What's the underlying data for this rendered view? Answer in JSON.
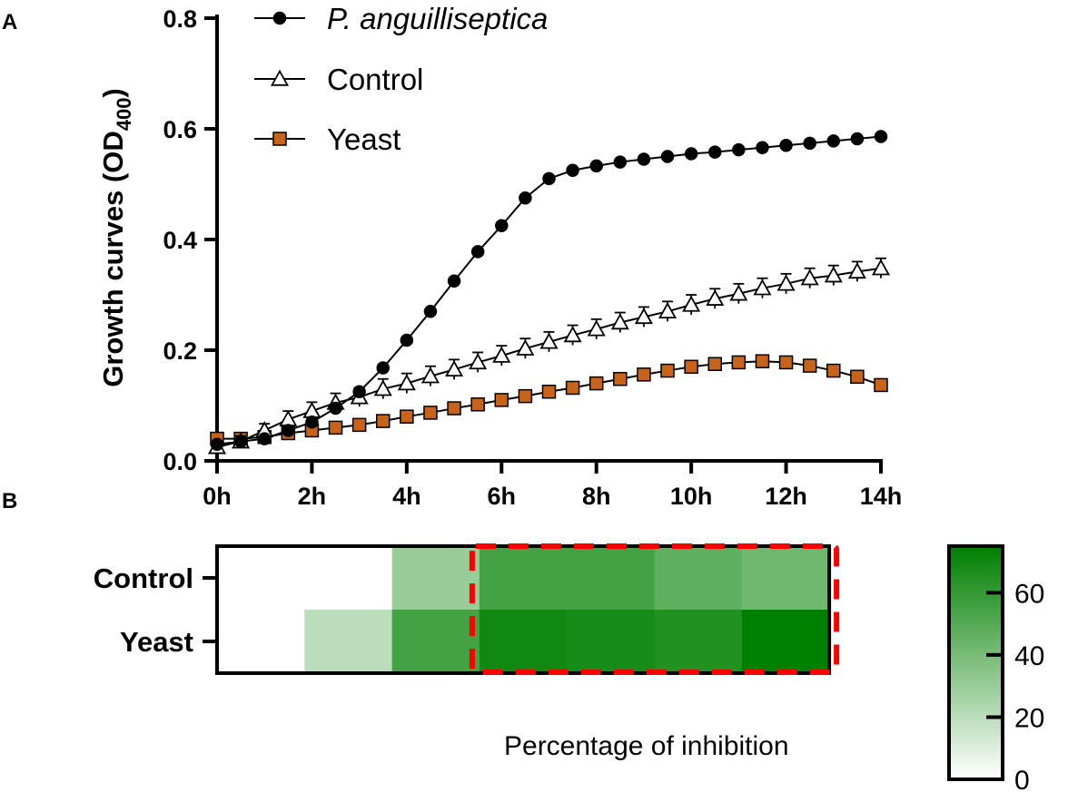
{
  "panel_labels": {
    "a": "A",
    "b": "B"
  },
  "colors": {
    "pathogen": "#000000",
    "control_fill": "#ffffff",
    "yeast_fill": "#c8631a",
    "heat_high": "#008000",
    "highlight_box": "#ff0000"
  },
  "chart_data": [
    {
      "type": "line",
      "panel": "A",
      "title": "",
      "xlabel": "",
      "ylabel": "Growth curves (OD",
      "ylabel_sub": "400",
      "ylabel_close": ")",
      "xlim": [
        0,
        14
      ],
      "ylim": [
        0,
        0.8
      ],
      "x_ticks": [
        0,
        2,
        4,
        6,
        8,
        10,
        12,
        14
      ],
      "x_tick_labels": [
        "0h",
        "2h",
        "4h",
        "6h",
        "8h",
        "10h",
        "12h",
        "14h"
      ],
      "y_ticks": [
        0,
        0.2,
        0.4,
        0.6,
        0.8
      ],
      "y_tick_labels": [
        "0.0",
        "0.2",
        "0.4",
        "0.6",
        "0.8"
      ],
      "legend_position": "top-left",
      "x": [
        0,
        0.5,
        1,
        1.5,
        2,
        2.5,
        3,
        3.5,
        4,
        4.5,
        5,
        5.5,
        6,
        6.5,
        7,
        7.5,
        8,
        8.5,
        9,
        9.5,
        10,
        10.5,
        11,
        11.5,
        12,
        12.5,
        13,
        13.5,
        14
      ],
      "series": [
        {
          "name": "P. anguilliseptica",
          "italic": true,
          "marker": "circle",
          "values": [
            0.03,
            0.035,
            0.04,
            0.055,
            0.07,
            0.095,
            0.125,
            0.168,
            0.218,
            0.27,
            0.325,
            0.378,
            0.425,
            0.475,
            0.51,
            0.525,
            0.533,
            0.54,
            0.545,
            0.55,
            0.555,
            0.558,
            0.562,
            0.566,
            0.57,
            0.574,
            0.578,
            0.582,
            0.586
          ],
          "errors": [
            0.004,
            0.004,
            0.004,
            0.004,
            0.004,
            0.005,
            0.005,
            0.005,
            0.005,
            0.005,
            0.005,
            0.005,
            0.005,
            0.005,
            0.005,
            0.005,
            0.005,
            0.005,
            0.005,
            0.005,
            0.005,
            0.005,
            0.005,
            0.005,
            0.005,
            0.005,
            0.005,
            0.005,
            0.005
          ]
        },
        {
          "name": "Control",
          "italic": false,
          "marker": "triangle",
          "values": [
            0.025,
            0.035,
            0.055,
            0.075,
            0.09,
            0.105,
            0.115,
            0.13,
            0.14,
            0.153,
            0.165,
            0.178,
            0.19,
            0.203,
            0.215,
            0.227,
            0.238,
            0.25,
            0.26,
            0.27,
            0.282,
            0.293,
            0.302,
            0.312,
            0.32,
            0.33,
            0.335,
            0.342,
            0.348
          ],
          "errors": [
            0.008,
            0.01,
            0.012,
            0.015,
            0.016,
            0.017,
            0.017,
            0.018,
            0.018,
            0.018,
            0.018,
            0.018,
            0.018,
            0.018,
            0.018,
            0.018,
            0.018,
            0.018,
            0.018,
            0.018,
            0.018,
            0.018,
            0.018,
            0.018,
            0.018,
            0.018,
            0.018,
            0.018,
            0.018
          ]
        },
        {
          "name": "Yeast",
          "italic": false,
          "marker": "square",
          "values": [
            0.04,
            0.04,
            0.043,
            0.05,
            0.055,
            0.06,
            0.065,
            0.072,
            0.08,
            0.087,
            0.095,
            0.102,
            0.11,
            0.117,
            0.125,
            0.132,
            0.14,
            0.148,
            0.156,
            0.163,
            0.17,
            0.175,
            0.178,
            0.18,
            0.178,
            0.172,
            0.163,
            0.152,
            0.137
          ],
          "errors": [
            0.004,
            0.004,
            0.004,
            0.004,
            0.004,
            0.004,
            0.004,
            0.004,
            0.004,
            0.004,
            0.004,
            0.004,
            0.004,
            0.004,
            0.004,
            0.004,
            0.004,
            0.004,
            0.004,
            0.004,
            0.004,
            0.004,
            0.004,
            0.004,
            0.004,
            0.004,
            0.004,
            0.004,
            0.004
          ]
        }
      ]
    },
    {
      "type": "heatmap",
      "panel": "B",
      "rows": [
        "Control",
        "Yeast"
      ],
      "columns_hours": [
        0,
        2,
        4,
        6,
        8,
        10,
        12
      ],
      "values": [
        [
          0,
          0,
          30,
          55,
          55,
          47,
          42
        ],
        [
          0,
          20,
          55,
          70,
          68,
          65,
          75
        ]
      ],
      "highlight_region": {
        "from_column": 3,
        "to_column": 6,
        "style": "red dashed"
      },
      "colorbar": {
        "range": [
          0,
          75
        ],
        "ticks": [
          0,
          20,
          40,
          60
        ],
        "tick_labels": [
          "0",
          "20",
          "40",
          "60"
        ],
        "label": "Percentage of inhibition",
        "color_low": "#ffffff",
        "color_high": "#008000"
      }
    }
  ]
}
